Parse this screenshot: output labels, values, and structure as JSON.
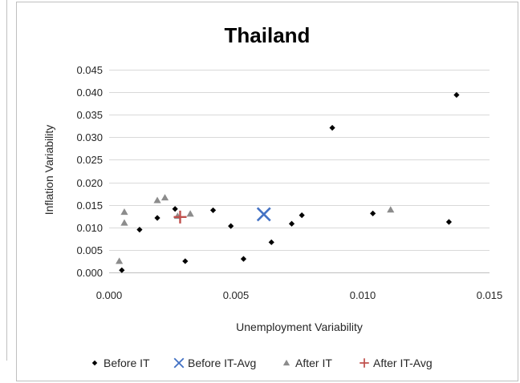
{
  "chart_data": {
    "type": "scatter",
    "title": "Thailand",
    "xlabel": "Unemployment Variability",
    "ylabel": "Inflation Variability",
    "xlim": [
      0,
      0.015
    ],
    "ylim": [
      0,
      0.045
    ],
    "x_ticks": [
      "0.000",
      "0.005",
      "0.010",
      "0.015"
    ],
    "y_ticks": [
      "0.000",
      "0.005",
      "0.010",
      "0.015",
      "0.020",
      "0.025",
      "0.030",
      "0.035",
      "0.040",
      "0.045"
    ],
    "grid": "horizontal",
    "legend_position": "bottom",
    "series": [
      {
        "name": "Before IT",
        "marker": "diamond",
        "color": "#000000",
        "points": [
          [
            0.0005,
            0.0005
          ],
          [
            0.0012,
            0.0095
          ],
          [
            0.0019,
            0.0121
          ],
          [
            0.0026,
            0.0141
          ],
          [
            0.003,
            0.0025
          ],
          [
            0.0041,
            0.0138
          ],
          [
            0.0048,
            0.0103
          ],
          [
            0.0053,
            0.003
          ],
          [
            0.0064,
            0.0067
          ],
          [
            0.0072,
            0.0108
          ],
          [
            0.0076,
            0.0127
          ],
          [
            0.0088,
            0.0321
          ],
          [
            0.0104,
            0.0131
          ],
          [
            0.0134,
            0.0112
          ],
          [
            0.0137,
            0.0394
          ]
        ]
      },
      {
        "name": "Before IT-Avg",
        "marker": "x",
        "color": "#4472c4",
        "points": [
          [
            0.0061,
            0.0129
          ]
        ]
      },
      {
        "name": "After IT",
        "marker": "triangle",
        "color": "#8c8c8c",
        "points": [
          [
            0.0004,
            0.0025
          ],
          [
            0.0006,
            0.011
          ],
          [
            0.0006,
            0.0134
          ],
          [
            0.0019,
            0.016
          ],
          [
            0.0022,
            0.0166
          ],
          [
            0.0027,
            0.0125
          ],
          [
            0.0032,
            0.013
          ],
          [
            0.0111,
            0.0139
          ]
        ]
      },
      {
        "name": "After IT-Avg",
        "marker": "plus",
        "color": "#c0504d",
        "points": [
          [
            0.0028,
            0.0123
          ]
        ]
      }
    ]
  }
}
